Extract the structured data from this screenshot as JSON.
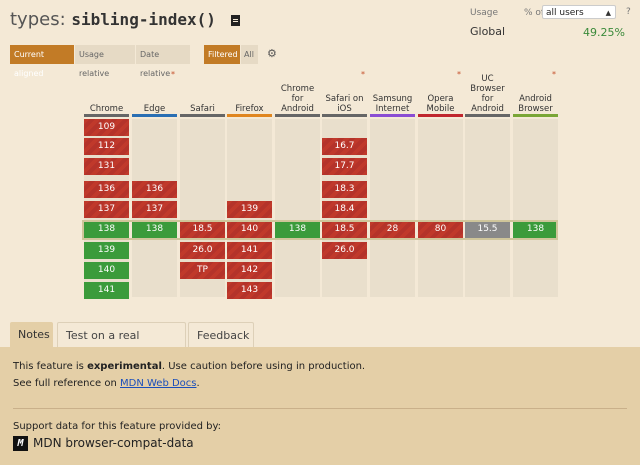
{
  "title": {
    "prefix": "types:",
    "code": "sibling-index()"
  },
  "usage": {
    "label": "Usage",
    "pct_of": "% of",
    "users_select": "all users",
    "help": "?",
    "global_label": "Global",
    "global_value": "49.25%"
  },
  "filters": {
    "current_aligned": "Current aligned",
    "usage_relative": "Usage relative",
    "date_relative": "Date relative",
    "filtered": "Filtered",
    "all": "All"
  },
  "browsers": [
    {
      "name": "Chrome",
      "star": "",
      "color": "#666666"
    },
    {
      "name": "Edge",
      "star": "*",
      "color": "#2a6fb3"
    },
    {
      "name": "Safari",
      "star": "",
      "color": "#666666"
    },
    {
      "name": "Firefox",
      "star": "",
      "color": "#e0861f"
    },
    {
      "name": "Chrome for Android",
      "star": "",
      "color": "#666666"
    },
    {
      "name": "Safari on iOS",
      "star": "*",
      "color": "#666666"
    },
    {
      "name": "Samsung Internet",
      "star": "",
      "color": "#8a4dd3"
    },
    {
      "name": "Opera Mobile",
      "star": "*",
      "color": "#c0262d"
    },
    {
      "name": "UC Browser for Android",
      "star": "",
      "color": "#666666"
    },
    {
      "name": "Android Browser",
      "star": "*",
      "color": "#7aa636"
    }
  ],
  "cells": [
    [
      {
        "v": "109",
        "s": "red"
      },
      {
        "v": "112",
        "s": "red"
      },
      {
        "v": "131",
        "s": "red"
      },
      {
        "v": "136",
        "s": "red"
      },
      {
        "v": "137",
        "s": "red"
      },
      {
        "v": "138",
        "s": "green"
      },
      {
        "v": "139",
        "s": "green"
      },
      {
        "v": "140",
        "s": "green"
      },
      {
        "v": "141",
        "s": "green"
      }
    ],
    [
      null,
      null,
      null,
      {
        "v": "136",
        "s": "red"
      },
      {
        "v": "137",
        "s": "red"
      },
      {
        "v": "138",
        "s": "green"
      },
      null,
      null,
      null
    ],
    [
      null,
      null,
      null,
      null,
      null,
      {
        "v": "18.5",
        "s": "red"
      },
      {
        "v": "26.0",
        "s": "red"
      },
      {
        "v": "TP",
        "s": "red"
      },
      null
    ],
    [
      null,
      null,
      null,
      null,
      {
        "v": "139",
        "s": "red"
      },
      {
        "v": "140",
        "s": "red"
      },
      {
        "v": "141",
        "s": "red"
      },
      {
        "v": "142",
        "s": "red"
      },
      {
        "v": "143",
        "s": "red"
      }
    ],
    [
      null,
      null,
      null,
      null,
      null,
      {
        "v": "138",
        "s": "green"
      },
      null,
      null,
      null
    ],
    [
      null,
      {
        "v": "16.7",
        "s": "red"
      },
      {
        "v": "17.7",
        "s": "red"
      },
      {
        "v": "18.3",
        "s": "red"
      },
      {
        "v": "18.4",
        "s": "red"
      },
      {
        "v": "18.5",
        "s": "red"
      },
      {
        "v": "26.0",
        "s": "red"
      },
      null,
      null
    ],
    [
      null,
      null,
      null,
      null,
      null,
      {
        "v": "28",
        "s": "red"
      },
      null,
      null,
      null
    ],
    [
      null,
      null,
      null,
      null,
      null,
      {
        "v": "80",
        "s": "red"
      },
      null,
      null,
      null
    ],
    [
      null,
      null,
      null,
      null,
      null,
      {
        "v": "15.5",
        "s": "gray"
      },
      null,
      null,
      null
    ],
    [
      null,
      null,
      null,
      null,
      null,
      {
        "v": "138",
        "s": "green"
      },
      null,
      null,
      null
    ]
  ],
  "tabs": {
    "notes": "Notes",
    "test": "Test on a real browser",
    "feedback": "Feedback"
  },
  "notes": {
    "line1_pre": "This feature is ",
    "line1_bold": "experimental",
    "line1_post": ". Use caution before using in production.",
    "line2_pre": "See full reference on ",
    "line2_link": "MDN Web Docs",
    "line2_post": ".",
    "support": "Support data for this feature provided by:",
    "logo": "M",
    "mdn_name": "MDN browser-compat-data"
  },
  "colors": {
    "accent": "#c27b26",
    "supported": "#3b9b3b",
    "unsupported": "#c0392b",
    "unknown": "#898989"
  }
}
